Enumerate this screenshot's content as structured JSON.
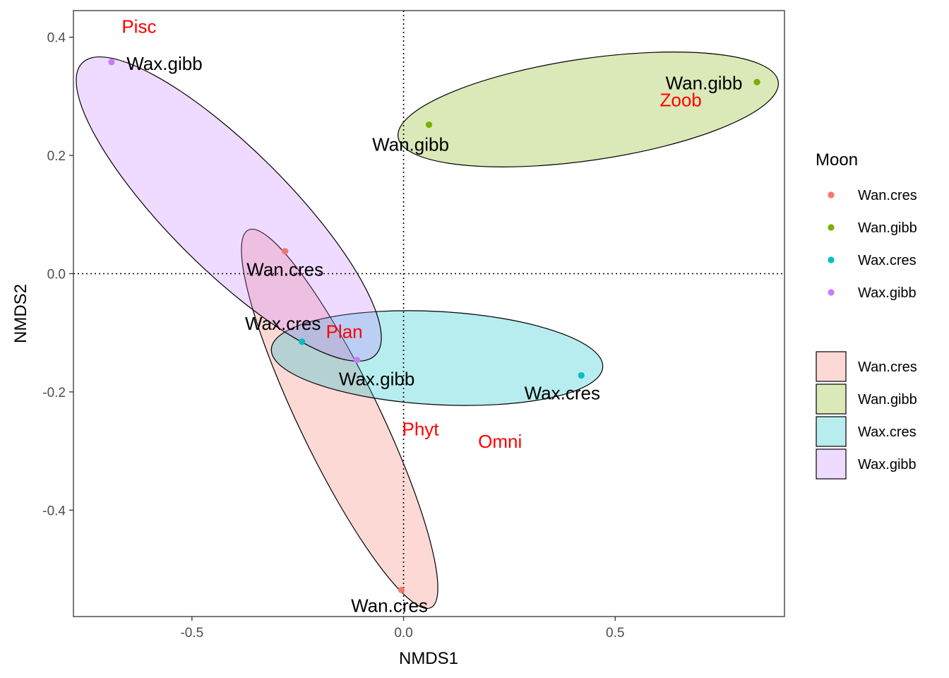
{
  "chart_data": {
    "type": "scatter",
    "title": "",
    "xlabel": "NMDS1",
    "ylabel": "NMDS2",
    "xlim": [
      -0.78,
      0.9
    ],
    "ylim": [
      -0.58,
      0.445
    ],
    "xticks": [
      -0.5,
      0.0,
      0.5
    ],
    "xtick_labels": [
      "-0.5",
      "0.0",
      "0.5"
    ],
    "yticks": [
      -0.4,
      -0.2,
      0.0,
      0.2,
      0.4
    ],
    "ytick_labels": [
      "-0.4",
      "-0.2",
      "0.0",
      "0.2",
      "0.4"
    ],
    "grid": false,
    "reference_lines": {
      "x": 0,
      "y": 0,
      "style": "dotted"
    },
    "series": [
      {
        "name": "Wan.cres",
        "color": "#F8766D",
        "fill": "#F8766D",
        "points": [
          {
            "x": -0.28,
            "y": 0.038,
            "label": "Wan.cres"
          },
          {
            "x": -0.005,
            "y": -0.535,
            "label": "Wan.cres"
          }
        ]
      },
      {
        "name": "Wan.gibb",
        "color": "#7CAE00",
        "fill": "#7CAE00",
        "points": [
          {
            "x": 0.06,
            "y": 0.252,
            "label": "Wan.gibb"
          },
          {
            "x": 0.835,
            "y": 0.324,
            "label": "Wan.gibb"
          }
        ]
      },
      {
        "name": "Wax.cres",
        "color": "#00BFC4",
        "fill": "#00BFC4",
        "points": [
          {
            "x": -0.24,
            "y": -0.115,
            "label": "Wax.cres"
          },
          {
            "x": 0.42,
            "y": -0.172,
            "label": "Wax.cres"
          }
        ]
      },
      {
        "name": "Wax.gibb",
        "color": "#C77CFF",
        "fill": "#C77CFF",
        "points": [
          {
            "x": -0.69,
            "y": 0.358,
            "label": "Wax.gibb"
          },
          {
            "x": -0.11,
            "y": -0.146,
            "label": "Wax.gibb"
          }
        ]
      }
    ],
    "group_labels": [
      {
        "text": "Pisc",
        "x": -0.625,
        "y": 0.418
      },
      {
        "text": "Zoob",
        "x": 0.655,
        "y": 0.294
      },
      {
        "text": "Plan",
        "x": -0.14,
        "y": -0.098
      },
      {
        "text": "Phyt",
        "x": 0.04,
        "y": -0.263
      },
      {
        "text": "Omni",
        "x": 0.228,
        "y": -0.284
      }
    ],
    "legend": {
      "title": "Moon",
      "placement": "right",
      "point_entries": [
        "Wan.cres",
        "Wan.gibb",
        "Wax.cres",
        "Wax.gibb"
      ],
      "fill_entries": [
        "Wan.cres",
        "Wan.gibb",
        "Wax.cres",
        "Wax.gibb"
      ]
    }
  }
}
